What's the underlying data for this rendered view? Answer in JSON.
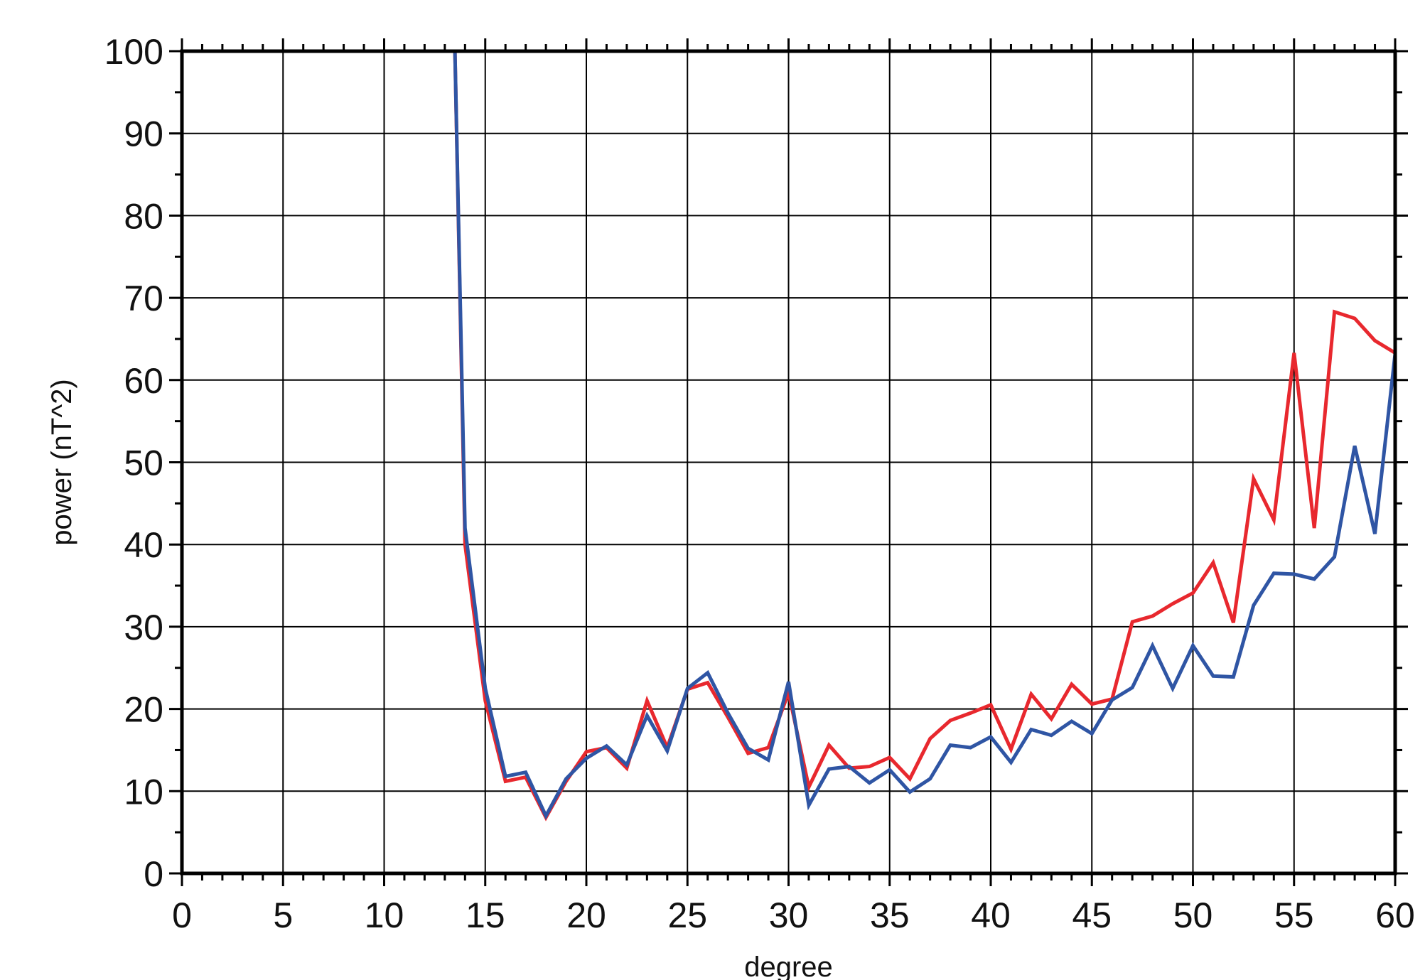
{
  "chart_data": {
    "type": "line",
    "xlabel": "degree",
    "ylabel": "power (nT^2)",
    "xlim": [
      0,
      60
    ],
    "ylim": [
      0,
      100
    ],
    "xticks": [
      0,
      5,
      10,
      15,
      20,
      25,
      30,
      35,
      40,
      45,
      50,
      55,
      60
    ],
    "yticks": [
      0,
      10,
      20,
      30,
      40,
      50,
      60,
      70,
      80,
      90,
      100
    ],
    "grid": true,
    "series": [
      {
        "color": "#e8282e",
        "x": [
          13.5,
          14,
          15,
          16,
          17,
          18,
          19,
          20,
          21,
          22,
          23,
          24,
          25,
          26,
          27,
          28,
          29,
          30,
          31,
          32,
          33,
          34,
          35,
          36,
          37,
          38,
          39,
          40,
          41,
          42,
          43,
          44,
          45,
          46,
          47,
          48,
          49,
          50,
          51,
          52,
          53,
          54,
          55,
          56,
          57,
          58,
          59,
          60
        ],
        "y": [
          100,
          40,
          21,
          11.2,
          11.7,
          6.8,
          11.2,
          14.8,
          15.3,
          12.8,
          21.0,
          15.3,
          22.4,
          23.2,
          19.0,
          14.6,
          15.3,
          22.0,
          10.5,
          15.6,
          12.8,
          13.0,
          14.1,
          11.5,
          16.4,
          18.6,
          19.5,
          20.5,
          15.1,
          21.8,
          18.8,
          23.0,
          20.6,
          21.2,
          30.6,
          31.3,
          32.8,
          34.1,
          37.8,
          30.5,
          48.0,
          43.0,
          63.3,
          42.0,
          68.3,
          67.5,
          64.8,
          63.3
        ]
      },
      {
        "color": "#2f55a4",
        "x": [
          13.5,
          14,
          15,
          16,
          17,
          18,
          19,
          20,
          21,
          22,
          23,
          24,
          25,
          26,
          27,
          28,
          29,
          30,
          31,
          32,
          33,
          34,
          35,
          36,
          37,
          38,
          39,
          40,
          41,
          42,
          43,
          44,
          45,
          46,
          47,
          48,
          49,
          50,
          51,
          52,
          53,
          54,
          55,
          56,
          57,
          58,
          59,
          60
        ],
        "y": [
          100,
          42,
          22.5,
          11.8,
          12.3,
          7.0,
          11.5,
          14.0,
          15.5,
          13.2,
          19.2,
          14.9,
          22.5,
          24.4,
          19.5,
          15.2,
          13.8,
          23.3,
          8.3,
          12.7,
          13.0,
          11.0,
          12.6,
          9.9,
          11.5,
          15.6,
          15.3,
          16.6,
          13.5,
          17.5,
          16.8,
          18.5,
          17.0,
          21.1,
          22.6,
          27.7,
          22.5,
          27.7,
          24.0,
          23.9,
          32.6,
          36.5,
          36.4,
          35.8,
          38.5,
          52.0,
          41.3,
          63.2
        ]
      }
    ]
  }
}
